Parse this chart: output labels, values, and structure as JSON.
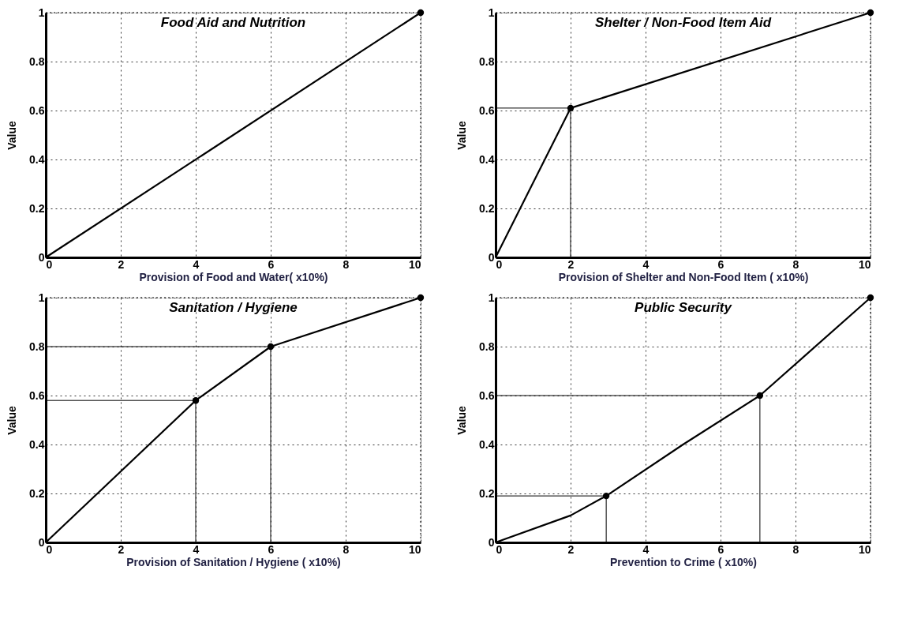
{
  "chart_data": [
    {
      "type": "line",
      "title": "Food Aid and Nutrition",
      "xlabel": "Provision of Food and Water( x10%)",
      "ylabel": "Value",
      "xlim": [
        0,
        10
      ],
      "ylim": [
        0,
        1
      ],
      "xticks": [
        0,
        2,
        4,
        6,
        8,
        10
      ],
      "yticks": [
        0,
        0.2,
        0.4,
        0.6,
        0.8,
        1
      ],
      "grid": true,
      "series": [
        {
          "color": "#000000",
          "x": [
            0,
            10
          ],
          "values": [
            0,
            1
          ]
        },
        {
          "type": "scatter",
          "color": "#000000",
          "x": [
            10
          ],
          "values": [
            1
          ],
          "marker": "circle"
        }
      ]
    },
    {
      "type": "line",
      "title": "Shelter / Non-Food Item Aid",
      "xlabel": "Provision of Shelter and Non-Food Item ( x10%)",
      "ylabel": "Value",
      "xlim": [
        0,
        10
      ],
      "ylim": [
        0,
        1
      ],
      "xticks": [
        0,
        2,
        4,
        6,
        8,
        10
      ],
      "yticks": [
        0,
        0.2,
        0.4,
        0.6,
        0.8,
        1
      ],
      "grid": true,
      "series": [
        {
          "color": "#000000",
          "x": [
            0,
            2,
            10
          ],
          "values": [
            0,
            0.61,
            1
          ]
        },
        {
          "type": "scatter",
          "color": "#000000",
          "x": [
            2,
            10
          ],
          "values": [
            0.61,
            1
          ],
          "marker": "circle"
        },
        {
          "color": "#000000",
          "x": [
            0,
            2,
            2
          ],
          "values": [
            0.61,
            0.61,
            0
          ]
        }
      ]
    },
    {
      "type": "line",
      "title": "Sanitation / Hygiene",
      "xlabel": "Provision of Sanitation / Hygiene ( x10%)",
      "ylabel": "Value",
      "xlim": [
        0,
        10
      ],
      "ylim": [
        0,
        1
      ],
      "xticks": [
        0,
        2,
        4,
        6,
        8,
        10
      ],
      "yticks": [
        0,
        0.2,
        0.4,
        0.6,
        0.8,
        1
      ],
      "grid": true,
      "series": [
        {
          "color": "#000000",
          "x": [
            0,
            4,
            6,
            10
          ],
          "values": [
            0,
            0.58,
            0.8,
            1
          ]
        },
        {
          "type": "scatter",
          "color": "#000000",
          "x": [
            4,
            6,
            10
          ],
          "values": [
            0.58,
            0.8,
            1
          ],
          "marker": "circle"
        },
        {
          "color": "#000000",
          "x": [
            0,
            4,
            4
          ],
          "values": [
            0.58,
            0.58,
            0
          ]
        },
        {
          "color": "#000000",
          "x": [
            0,
            6,
            6
          ],
          "values": [
            0.8,
            0.8,
            0
          ]
        }
      ]
    },
    {
      "type": "line",
      "title": "Public Security",
      "xlabel": "Prevention to Crime ( x10%)",
      "ylabel": "Value",
      "xlim": [
        0,
        10
      ],
      "ylim": [
        0,
        1
      ],
      "xticks": [
        0,
        2,
        4,
        6,
        8,
        10
      ],
      "yticks": [
        0,
        0.2,
        0.4,
        0.6,
        0.8,
        1
      ],
      "grid": true,
      "series": [
        {
          "color": "#000000",
          "x": [
            0,
            2,
            2.95,
            5,
            7.05,
            10
          ],
          "values": [
            0,
            0.11,
            0.19,
            0.4,
            0.6,
            1
          ]
        },
        {
          "type": "scatter",
          "color": "#000000",
          "x": [
            2.95,
            7.05,
            10
          ],
          "values": [
            0.19,
            0.6,
            1
          ],
          "marker": "circle"
        },
        {
          "color": "#000000",
          "x": [
            0,
            2.95,
            2.95
          ],
          "values": [
            0.19,
            0.19,
            0
          ]
        },
        {
          "color": "#000000",
          "x": [
            0,
            7.05,
            7.05
          ],
          "values": [
            0.6,
            0.6,
            0
          ]
        }
      ]
    }
  ]
}
